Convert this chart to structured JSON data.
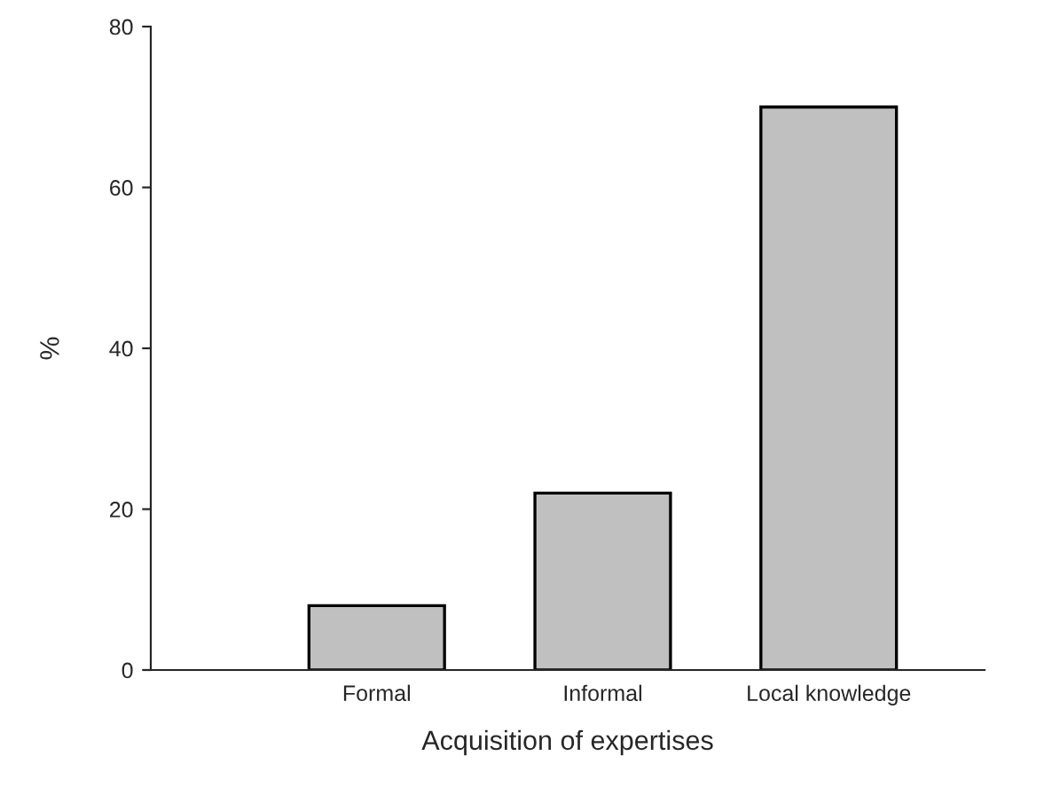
{
  "chart_data": {
    "type": "bar",
    "categories": [
      "Formal",
      "Informal",
      "Local knowledge"
    ],
    "values": [
      8,
      22,
      70
    ],
    "color": "#c0c0c0",
    "xlabel": "Acquisition of expertises",
    "ylabel": "%",
    "ylim": [
      0,
      80
    ],
    "yticks": [
      0,
      20,
      40,
      60,
      80
    ],
    "grid": false,
    "legend": false
  }
}
